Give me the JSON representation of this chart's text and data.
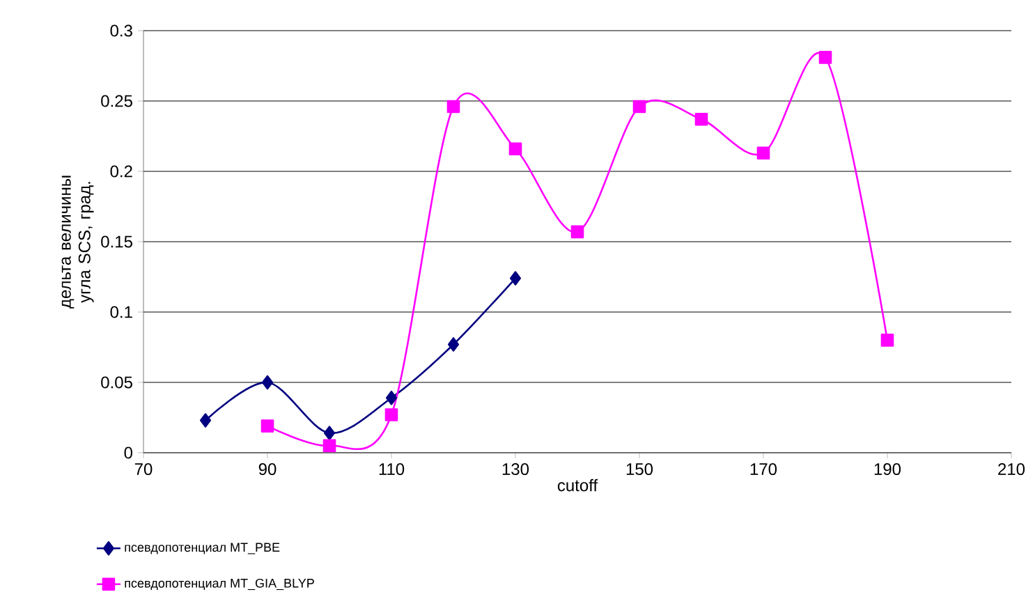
{
  "chart_data": {
    "type": "line",
    "xlabel": "cutoff",
    "ylabel": "дельта величины угла SCS, град.",
    "xlim": [
      70,
      210
    ],
    "xticks": [
      70,
      90,
      110,
      130,
      150,
      170,
      190,
      210
    ],
    "ylim": [
      0,
      0.3
    ],
    "yticks": [
      0,
      0.05,
      0.1,
      0.15,
      0.2,
      0.25,
      0.3
    ],
    "grid": "y",
    "legend": "bottom left",
    "line_style": "solid",
    "series": [
      {
        "name": "псевдопотенциал MT_PBE",
        "color": "#000080",
        "marker": "diamond",
        "x": [
          80,
          90,
          100,
          110,
          120,
          130
        ],
        "values": [
          0.023,
          0.05,
          0.014,
          0.039,
          0.077,
          0.124
        ]
      },
      {
        "name": "псевдопотенциал MT_GIA_BLYP",
        "color": "#ff00ff",
        "marker": "square",
        "x": [
          90,
          100,
          110,
          120,
          130,
          140,
          150,
          160,
          170,
          180,
          190
        ],
        "values": [
          0.019,
          0.005,
          0.027,
          0.246,
          0.216,
          0.157,
          0.246,
          0.237,
          0.213,
          0.281,
          0.08
        ]
      }
    ]
  }
}
